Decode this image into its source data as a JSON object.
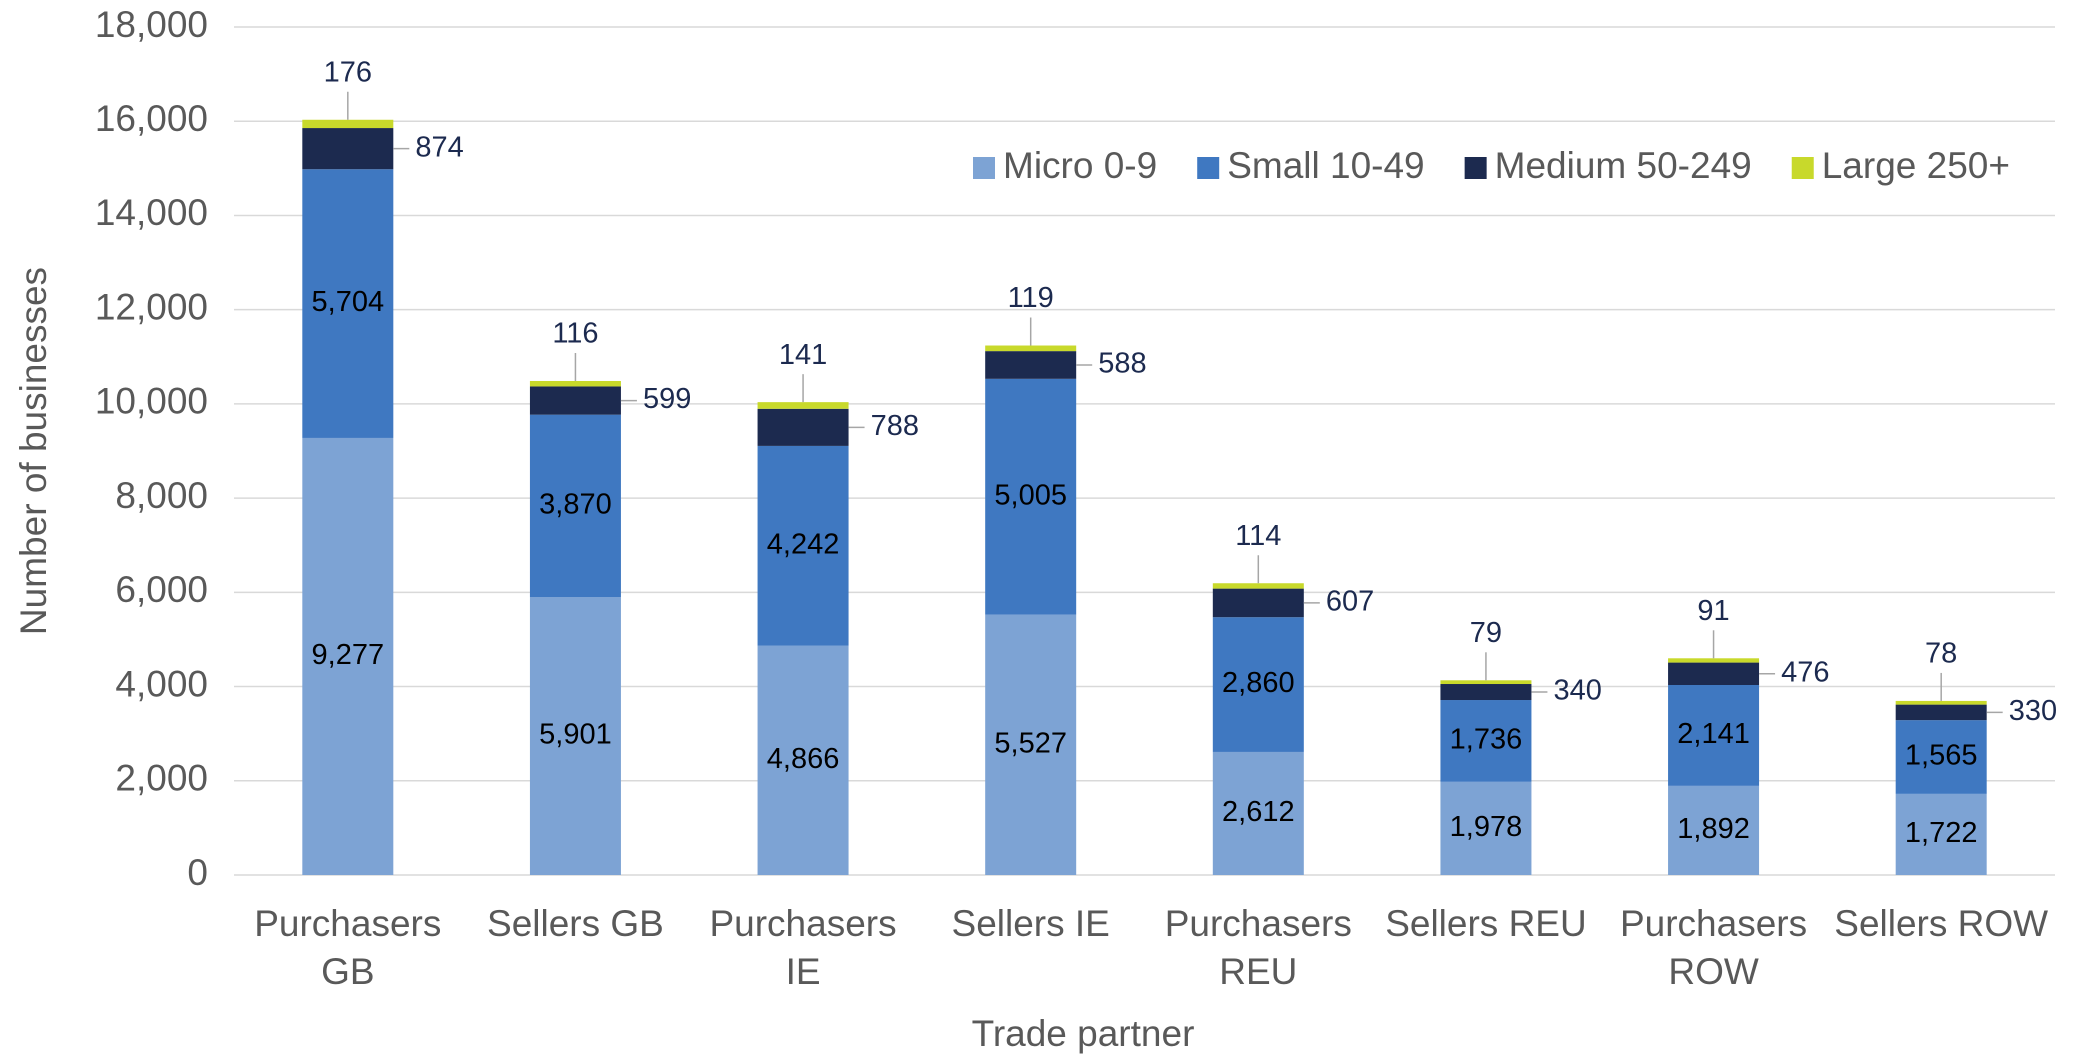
{
  "chart_data": {
    "type": "stacked_bar",
    "x_label": "Trade partner",
    "y_label": "Number of businesses",
    "categories": [
      "Purchasers GB",
      "Sellers GB",
      "Purchasers IE",
      "Sellers IE",
      "Purchasers REU",
      "Sellers REU",
      "Purchasers ROW",
      "Sellers ROW"
    ],
    "series": [
      {
        "name": "Micro 0-9",
        "color": "#7da3d4",
        "values": [
          9277,
          5901,
          4866,
          5527,
          2612,
          1978,
          1892,
          1722
        ],
        "value_labels": [
          "9,277",
          "5,901",
          "4,866",
          "5,527",
          "2,612",
          "1,978",
          "1,892",
          "1,722"
        ]
      },
      {
        "name": "Small 10-49",
        "color": "#3f78c1",
        "values": [
          5704,
          3870,
          4242,
          5005,
          2860,
          1736,
          2141,
          1565
        ],
        "value_labels": [
          "5,704",
          "3,870",
          "4,242",
          "5,005",
          "2,860",
          "1,736",
          "2,141",
          "1,565"
        ]
      },
      {
        "name": "Medium 50-249",
        "color": "#1c2a4f",
        "values": [
          874,
          599,
          788,
          588,
          607,
          340,
          476,
          330
        ]
      },
      {
        "name": "Large 250+",
        "color": "#c8d92b",
        "values": [
          176,
          116,
          141,
          119,
          114,
          79,
          91,
          78
        ]
      }
    ],
    "ylim": [
      0,
      18000
    ],
    "yticks": [
      0,
      {
        "value": 2000,
        "label": "2,000"
      },
      {
        "value": 4000,
        "label": "4,000"
      },
      {
        "value": 6000,
        "label": "6,000"
      },
      {
        "value": 8000,
        "label": "8,000"
      },
      {
        "value": 10000,
        "label": "10,000"
      },
      {
        "value": 12000,
        "label": "12,000"
      },
      {
        "value": 14000,
        "label": "14,000"
      },
      {
        "value": 16000,
        "label": "16,000"
      },
      {
        "value": 18000,
        "label": "18,000"
      }
    ],
    "grid": true,
    "legend": "top-right"
  }
}
